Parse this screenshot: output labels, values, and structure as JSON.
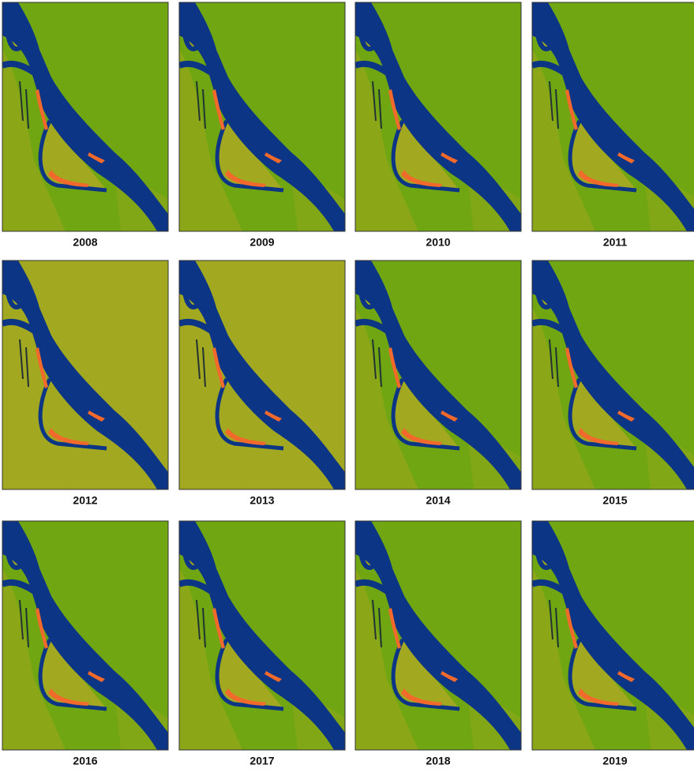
{
  "panels": [
    "2008",
    "2009",
    "2010",
    "2011",
    "2012",
    "2013",
    "2014",
    "2015",
    "2016",
    "2017",
    "2018",
    "2019"
  ]
}
